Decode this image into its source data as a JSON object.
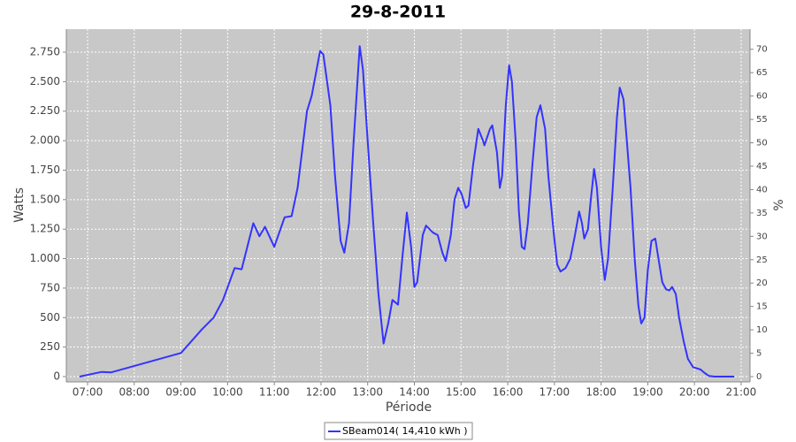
{
  "chart_data": {
    "type": "line",
    "title": "29-8-2011",
    "x_label": "Période",
    "y_label": "Watts",
    "y2_label": "%",
    "x": [
      6.83,
      7.3,
      7.5,
      9.0,
      9.45,
      9.7,
      9.9,
      10.15,
      10.3,
      10.55,
      10.68,
      10.8,
      11.0,
      11.22,
      11.37,
      11.5,
      11.7,
      11.8,
      11.98,
      12.05,
      12.2,
      12.3,
      12.42,
      12.5,
      12.6,
      12.7,
      12.83,
      12.9,
      13.0,
      13.12,
      13.23,
      13.34,
      13.44,
      13.53,
      13.65,
      13.74,
      13.84,
      13.93,
      14.0,
      14.06,
      14.18,
      14.25,
      14.4,
      14.5,
      14.6,
      14.67,
      14.78,
      14.86,
      14.94,
      15.01,
      15.1,
      15.16,
      15.26,
      15.37,
      15.47,
      15.5,
      15.62,
      15.67,
      15.77,
      15.83,
      15.88,
      15.96,
      16.03,
      16.09,
      16.17,
      16.24,
      16.3,
      16.36,
      16.43,
      16.53,
      16.62,
      16.7,
      16.8,
      16.87,
      16.99,
      17.06,
      17.13,
      17.24,
      17.34,
      17.44,
      17.53,
      17.59,
      17.64,
      17.72,
      17.78,
      17.85,
      17.91,
      18.0,
      18.08,
      18.15,
      18.25,
      18.34,
      18.4,
      18.48,
      18.55,
      18.63,
      18.72,
      18.8,
      18.86,
      18.93,
      19.0,
      19.08,
      19.16,
      19.23,
      19.31,
      19.39,
      19.46,
      19.52,
      19.6,
      19.67,
      19.77,
      19.86,
      19.97,
      20.13,
      20.22,
      20.31,
      20.43,
      20.85
    ],
    "series": [
      {
        "name": "SBeam014( 14,410 kWh )",
        "color": "#3333ff",
        "values": [
          0,
          40,
          35,
          200,
          400,
          500,
          650,
          920,
          910,
          1300,
          1190,
          1270,
          1100,
          1350,
          1360,
          1600,
          2250,
          2380,
          2760,
          2730,
          2300,
          1700,
          1150,
          1050,
          1300,
          2000,
          2800,
          2600,
          2000,
          1300,
          700,
          280,
          450,
          650,
          610,
          1000,
          1390,
          1100,
          760,
          800,
          1200,
          1280,
          1220,
          1200,
          1050,
          980,
          1200,
          1500,
          1600,
          1550,
          1430,
          1450,
          1800,
          2100,
          2000,
          1960,
          2100,
          2130,
          1900,
          1600,
          1700,
          2300,
          2640,
          2500,
          2000,
          1400,
          1100,
          1080,
          1300,
          1800,
          2200,
          2300,
          2100,
          1700,
          1200,
          950,
          890,
          920,
          1000,
          1200,
          1400,
          1300,
          1170,
          1250,
          1500,
          1760,
          1600,
          1100,
          820,
          1000,
          1600,
          2200,
          2450,
          2350,
          2000,
          1600,
          1000,
          600,
          450,
          500,
          900,
          1150,
          1170,
          1000,
          800,
          740,
          730,
          760,
          700,
          500,
          300,
          150,
          80,
          60,
          30,
          5,
          0,
          0
        ]
      }
    ],
    "xlim": [
      6.545,
      21.19
    ],
    "xticks": [
      {
        "value": 7,
        "label": "07:00"
      },
      {
        "value": 8,
        "label": "08:00"
      },
      {
        "value": 9,
        "label": "09:00"
      },
      {
        "value": 10,
        "label": "10:00"
      },
      {
        "value": 11,
        "label": "11:00"
      },
      {
        "value": 12,
        "label": "12:00"
      },
      {
        "value": 13,
        "label": "13:00"
      },
      {
        "value": 14,
        "label": "14:00"
      },
      {
        "value": 15,
        "label": "15:00"
      },
      {
        "value": 16,
        "label": "16:00"
      },
      {
        "value": 17,
        "label": "17:00"
      },
      {
        "value": 18,
        "label": "18:00"
      },
      {
        "value": 19,
        "label": "19:00"
      },
      {
        "value": 20,
        "label": "20:00"
      },
      {
        "value": 21,
        "label": "21:00"
      }
    ],
    "ylim": [
      -45,
      2945
    ],
    "yticks": [
      0,
      250,
      500,
      750,
      {
        "value": 1000,
        "label": "1.000"
      },
      {
        "value": 1250,
        "label": "1.250"
      },
      {
        "value": 1500,
        "label": "1.500"
      },
      {
        "value": 1750,
        "label": "1.750"
      },
      {
        "value": 2000,
        "label": "2.000"
      },
      {
        "value": 2250,
        "label": "2.250"
      },
      {
        "value": 2500,
        "label": "2.500"
      },
      {
        "value": 2750,
        "label": "2.750"
      }
    ],
    "y2lim": [
      -1.13,
      74.3
    ],
    "y2ticks": [
      0,
      5,
      10,
      15,
      20,
      25,
      30,
      35,
      40,
      45,
      50,
      55,
      60,
      65,
      70
    ],
    "grid": true
  }
}
